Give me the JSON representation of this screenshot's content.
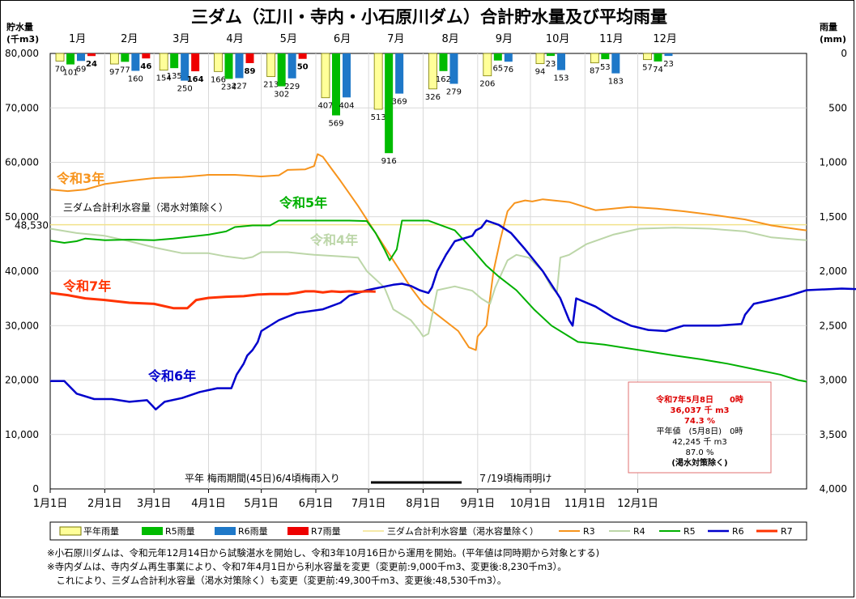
{
  "chart_data": {
    "type": "line",
    "title": "三ダム（江川・寺内・小石原川ダム）合計貯水量及び平均雨量",
    "left_axis": {
      "label_line1": "貯水量",
      "label_line2": "(千m3)",
      "range": [
        0,
        80000
      ],
      "ticks": [
        "0",
        "10,000",
        "20,000",
        "30,000",
        "40,000",
        "50,000",
        "60,000",
        "70,000",
        "80,000"
      ]
    },
    "right_axis": {
      "label_line1": "雨量",
      "label_line2": "(mm)",
      "range": [
        0,
        4000
      ],
      "inverted": true,
      "ticks": [
        "0",
        "500",
        "1,000",
        "1,500",
        "2,000",
        "2,500",
        "3,000",
        "3,500",
        "4,000"
      ]
    },
    "months_top": [
      "1月",
      "2月",
      "3月",
      "4月",
      "5月",
      "6月",
      "7月",
      "8月",
      "9月",
      "10月",
      "11月",
      "12月"
    ],
    "x_tick_labels": [
      "1月1日",
      "2月1日",
      "3月1日",
      "4月1日",
      "5月1日",
      "6月1日",
      "7月1日",
      "8月1日",
      "9月1日",
      "10月1日",
      "11月1日",
      "12月1日"
    ],
    "capacity": {
      "label": "三ダム合計利水容量（渇水対策除く）",
      "value": 48530,
      "value_label": "48,530"
    },
    "rain_bars": {
      "names": [
        "平年雨量",
        "R5雨量",
        "R6雨量",
        "R7雨量"
      ],
      "colors": [
        "#FFFF99",
        "#00BB00",
        "#1E78C8",
        "#EE0000"
      ],
      "values": [
        [
          70,
          101,
          69,
          24
        ],
        [
          97,
          77,
          160,
          46
        ],
        [
          154,
          135,
          250,
          164
        ],
        [
          166,
          234,
          227,
          89
        ],
        [
          213,
          302,
          229,
          50
        ],
        [
          407,
          569,
          404,
          null
        ],
        [
          513,
          916,
          369,
          null
        ],
        [
          326,
          162,
          279,
          null
        ],
        [
          206,
          65,
          76,
          null
        ],
        [
          94,
          23,
          153,
          null
        ],
        [
          87,
          53,
          183,
          null
        ],
        [
          57,
          74,
          23,
          null
        ]
      ]
    },
    "storage_series": [
      {
        "name": "令和3年",
        "legend": "R3",
        "color": "#F7941D",
        "points": [
          [
            0,
            55000
          ],
          [
            10,
            54700
          ],
          [
            20,
            55000
          ],
          [
            31,
            56000
          ],
          [
            45,
            56600
          ],
          [
            59,
            57100
          ],
          [
            75,
            57300
          ],
          [
            90,
            57700
          ],
          [
            105,
            57700
          ],
          [
            120,
            57400
          ],
          [
            130,
            57600
          ],
          [
            135,
            58600
          ],
          [
            145,
            58700
          ],
          [
            150,
            59300
          ],
          [
            152,
            61500
          ],
          [
            155,
            61000
          ],
          [
            160,
            58800
          ],
          [
            165,
            56600
          ],
          [
            175,
            52000
          ],
          [
            185,
            47000
          ],
          [
            195,
            42000
          ],
          [
            205,
            37000
          ],
          [
            212,
            34000
          ],
          [
            220,
            32000
          ],
          [
            232,
            29000
          ],
          [
            238,
            26000
          ],
          [
            242,
            25500
          ],
          [
            243,
            28000
          ],
          [
            248,
            30000
          ],
          [
            252,
            40000
          ],
          [
            256,
            46000
          ],
          [
            260,
            51000
          ],
          [
            264,
            52500
          ],
          [
            270,
            53000
          ],
          [
            274,
            52800
          ],
          [
            280,
            53200
          ],
          [
            295,
            52700
          ],
          [
            310,
            51200
          ],
          [
            320,
            51500
          ],
          [
            330,
            51800
          ],
          [
            345,
            51500
          ],
          [
            360,
            51000
          ],
          [
            380,
            50200
          ],
          [
            395,
            49500
          ],
          [
            410,
            48400
          ],
          [
            425,
            47700
          ],
          [
            430,
            47500
          ]
        ]
      },
      {
        "name": "令和4年",
        "legend": "R4",
        "color": "#BCD6A8",
        "points": [
          [
            0,
            47800
          ],
          [
            15,
            47000
          ],
          [
            31,
            46500
          ],
          [
            45,
            45500
          ],
          [
            60,
            44300
          ],
          [
            75,
            43300
          ],
          [
            90,
            43300
          ],
          [
            100,
            42700
          ],
          [
            110,
            42300
          ],
          [
            115,
            42600
          ],
          [
            120,
            43500
          ],
          [
            135,
            43500
          ],
          [
            150,
            43000
          ],
          [
            165,
            42700
          ],
          [
            175,
            42500
          ],
          [
            180,
            40000
          ],
          [
            190,
            37000
          ],
          [
            195,
            33000
          ],
          [
            205,
            31000
          ],
          [
            210,
            29000
          ],
          [
            212,
            28000
          ],
          [
            215,
            28500
          ],
          [
            220,
            36500
          ],
          [
            230,
            37200
          ],
          [
            240,
            36400
          ],
          [
            245,
            35000
          ],
          [
            250,
            34000
          ],
          [
            253,
            37000
          ],
          [
            260,
            42000
          ],
          [
            265,
            43000
          ],
          [
            272,
            42500
          ],
          [
            280,
            40000
          ],
          [
            285,
            37000
          ],
          [
            288,
            36000
          ],
          [
            290,
            42500
          ],
          [
            295,
            43000
          ],
          [
            305,
            45000
          ],
          [
            320,
            46700
          ],
          [
            335,
            47800
          ],
          [
            355,
            48000
          ],
          [
            375,
            47800
          ],
          [
            395,
            47300
          ],
          [
            410,
            46200
          ],
          [
            425,
            45800
          ],
          [
            430,
            45700
          ]
        ]
      },
      {
        "name": "令和5年",
        "legend": "R5",
        "color": "#00B000",
        "points": [
          [
            0,
            45600
          ],
          [
            8,
            45200
          ],
          [
            15,
            45500
          ],
          [
            20,
            46000
          ],
          [
            31,
            45700
          ],
          [
            45,
            45800
          ],
          [
            59,
            45700
          ],
          [
            70,
            46000
          ],
          [
            90,
            46700
          ],
          [
            100,
            47300
          ],
          [
            105,
            48100
          ],
          [
            115,
            48400
          ],
          [
            125,
            48400
          ],
          [
            130,
            49300
          ],
          [
            150,
            49300
          ],
          [
            170,
            49300
          ],
          [
            180,
            49200
          ],
          [
            185,
            47000
          ],
          [
            190,
            44000
          ],
          [
            193,
            42000
          ],
          [
            197,
            44000
          ],
          [
            200,
            49300
          ],
          [
            215,
            49300
          ],
          [
            230,
            47500
          ],
          [
            240,
            44000
          ],
          [
            248,
            41000
          ],
          [
            255,
            39000
          ],
          [
            265,
            36500
          ],
          [
            275,
            33000
          ],
          [
            285,
            30000
          ],
          [
            300,
            27000
          ],
          [
            315,
            26500
          ],
          [
            335,
            25500
          ],
          [
            355,
            24500
          ],
          [
            370,
            23800
          ],
          [
            385,
            23000
          ],
          [
            400,
            22000
          ],
          [
            415,
            21000
          ],
          [
            425,
            20000
          ],
          [
            430,
            19700
          ]
        ]
      },
      {
        "name": "令和6年",
        "legend": "R6",
        "color": "#0000CC",
        "points": [
          [
            0,
            19800
          ],
          [
            8,
            19800
          ],
          [
            15,
            17500
          ],
          [
            25,
            16500
          ],
          [
            35,
            16500
          ],
          [
            45,
            16000
          ],
          [
            55,
            16300
          ],
          [
            58,
            15300
          ],
          [
            60,
            14600
          ],
          [
            65,
            16000
          ],
          [
            75,
            16700
          ],
          [
            85,
            17800
          ],
          [
            95,
            18500
          ],
          [
            103,
            18500
          ],
          [
            106,
            21000
          ],
          [
            110,
            23000
          ],
          [
            112,
            24500
          ],
          [
            115,
            25500
          ],
          [
            118,
            27000
          ],
          [
            120,
            29000
          ],
          [
            130,
            31000
          ],
          [
            140,
            32300
          ],
          [
            155,
            33000
          ],
          [
            165,
            34200
          ],
          [
            170,
            35500
          ],
          [
            180,
            36500
          ],
          [
            195,
            37500
          ],
          [
            200,
            37700
          ],
          [
            205,
            37300
          ],
          [
            210,
            36500
          ],
          [
            215,
            36000
          ],
          [
            217,
            37000
          ],
          [
            220,
            40000
          ],
          [
            225,
            43000
          ],
          [
            230,
            45500
          ],
          [
            240,
            46500
          ],
          [
            242,
            47500
          ],
          [
            245,
            48000
          ],
          [
            248,
            49300
          ],
          [
            255,
            48500
          ],
          [
            262,
            47000
          ],
          [
            270,
            44000
          ],
          [
            280,
            40000
          ],
          [
            290,
            35000
          ],
          [
            295,
            31000
          ],
          [
            297,
            30000
          ],
          [
            299,
            35000
          ],
          [
            310,
            33500
          ],
          [
            320,
            31500
          ],
          [
            330,
            30000
          ],
          [
            340,
            29200
          ],
          [
            350,
            29000
          ],
          [
            360,
            30000
          ],
          [
            380,
            30000
          ],
          [
            393,
            30300
          ],
          [
            395,
            32000
          ],
          [
            400,
            34000
          ],
          [
            410,
            34700
          ],
          [
            420,
            35500
          ],
          [
            430,
            36500
          ],
          [
            450,
            36800
          ],
          [
            470,
            36600
          ],
          [
            490,
            36300
          ],
          [
            505,
            36100
          ]
        ]
      },
      {
        "name": "令和7年",
        "legend": "R7",
        "color": "#FF3300",
        "points": [
          [
            0,
            36000
          ],
          [
            10,
            35600
          ],
          [
            20,
            35000
          ],
          [
            31,
            34700
          ],
          [
            45,
            34200
          ],
          [
            59,
            34000
          ],
          [
            70,
            33200
          ],
          [
            78,
            33200
          ],
          [
            83,
            34700
          ],
          [
            90,
            35100
          ],
          [
            100,
            35300
          ],
          [
            110,
            35400
          ],
          [
            118,
            35700
          ],
          [
            125,
            35800
          ],
          [
            135,
            35800
          ],
          [
            140,
            36000
          ],
          [
            145,
            36300
          ],
          [
            150,
            36300
          ],
          [
            155,
            36100
          ],
          [
            160,
            36300
          ],
          [
            165,
            36200
          ],
          [
            170,
            36300
          ],
          [
            175,
            36200
          ],
          [
            180,
            36300
          ],
          [
            185,
            36250
          ]
        ]
      }
    ],
    "series_labels_on_plot": [
      "令和3年",
      "令和4年",
      "令和5年",
      "令和6年",
      "令和7年"
    ],
    "rainy_season": {
      "text_start": "平年 梅雨期間(45日)6/4頃梅雨入り",
      "text_end": "７/19頃梅雨明け"
    },
    "info_box": {
      "line1": "令和7年5月8日　　0時",
      "line2": "36,037 千 m3",
      "line3": "74.3  %",
      "line4": "平年値　(5月8日)　0時",
      "line5": "42,245 千 m3",
      "line6": "87.0  %",
      "line7": "(渇水対策除く)"
    },
    "legend": [
      "平年雨量",
      "R5雨量",
      "R6雨量",
      "R7雨量",
      "三ダム合計利水容量（渇水容量除く）",
      "R3",
      "R4",
      "R5",
      "R6",
      "R7"
    ]
  },
  "notes": [
    "※小石原川ダムは、令和元年12月14日から試験湛水を開始し、令和3年10月16日から運用を開始。(平年値は同時期から対象とする)",
    "※寺内ダムは、寺内ダム再生事業により、令和7年4月1日から利水容量を変更（変更前:9,000千m3、変更後:8,230千m3）。",
    "　これにより、三ダム合計利水容量（渇水対策除く）も変更（変更前:49,300千m3、変更後:48,530千m3）。"
  ]
}
